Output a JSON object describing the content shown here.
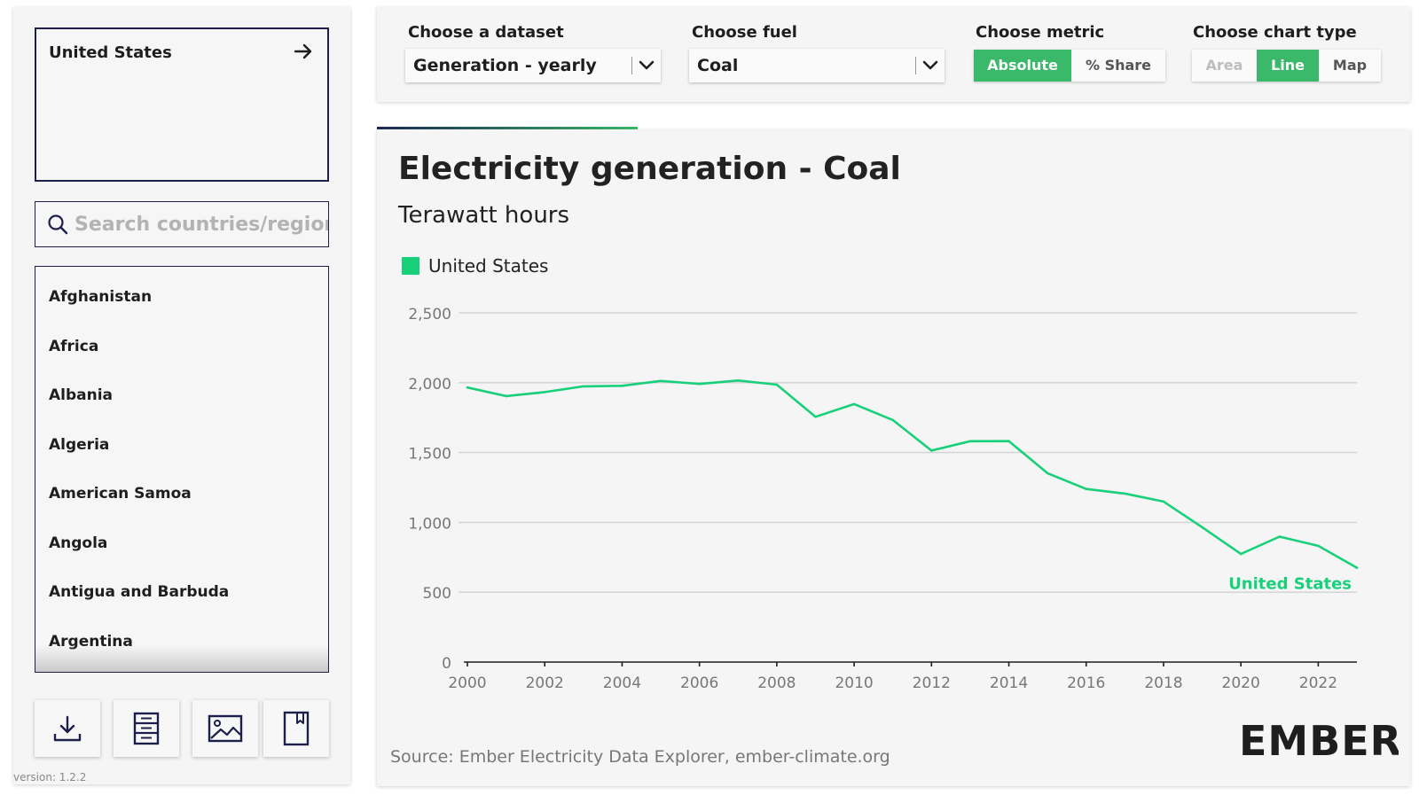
{
  "sidebar": {
    "selected_country": "United States",
    "search_placeholder": "Search countries/regions",
    "countries": [
      "Afghanistan",
      "Africa",
      "Albania",
      "Algeria",
      "American Samoa",
      "Angola",
      "Antigua and Barbuda",
      "Argentina"
    ],
    "version": "version: 1.2.2"
  },
  "controls": {
    "dataset_label": "Choose a dataset",
    "dataset_value": "Generation - yearly",
    "fuel_label": "Choose fuel",
    "fuel_value": "Coal",
    "metric_label": "Choose metric",
    "metric_options": [
      "Absolute",
      "% Share"
    ],
    "metric_active": "Absolute",
    "charttype_label": "Choose chart type",
    "charttype_options": [
      "Area",
      "Line",
      "Map"
    ],
    "charttype_active": "Line"
  },
  "colors": {
    "accent_green": "#3bb96a",
    "series_green": "#19d07a",
    "navy": "#1c1f4a"
  },
  "chart_data": {
    "type": "line",
    "title": "Electricity generation - Coal",
    "subtitle": "Terawatt hours",
    "xlim": [
      2000,
      2023
    ],
    "ylim": [
      0,
      2500
    ],
    "x_ticks": [
      2000,
      2002,
      2004,
      2006,
      2008,
      2010,
      2012,
      2014,
      2016,
      2018,
      2020,
      2022
    ],
    "y_ticks": [
      0,
      500,
      1000,
      1500,
      2000,
      2500
    ],
    "y_tick_labels": [
      "0",
      "500",
      "1,000",
      "1,500",
      "2,000",
      "2,500"
    ],
    "grid": true,
    "legend_position": "top-left",
    "series": [
      {
        "name": "United States",
        "end_label": "United States",
        "x": [
          2000,
          2001,
          2002,
          2003,
          2004,
          2005,
          2006,
          2007,
          2008,
          2009,
          2010,
          2011,
          2012,
          2013,
          2014,
          2015,
          2016,
          2017,
          2018,
          2019,
          2020,
          2021,
          2022,
          2023
        ],
        "values": [
          1966,
          1904,
          1933,
          1974,
          1978,
          2013,
          1991,
          2016,
          1986,
          1756,
          1847,
          1733,
          1514,
          1581,
          1582,
          1352,
          1239,
          1206,
          1149,
          965,
          774,
          898,
          832,
          675
        ]
      }
    ]
  },
  "source": "Source: Ember Electricity Data Explorer, ember-climate.org",
  "logo_text": "EMBER"
}
